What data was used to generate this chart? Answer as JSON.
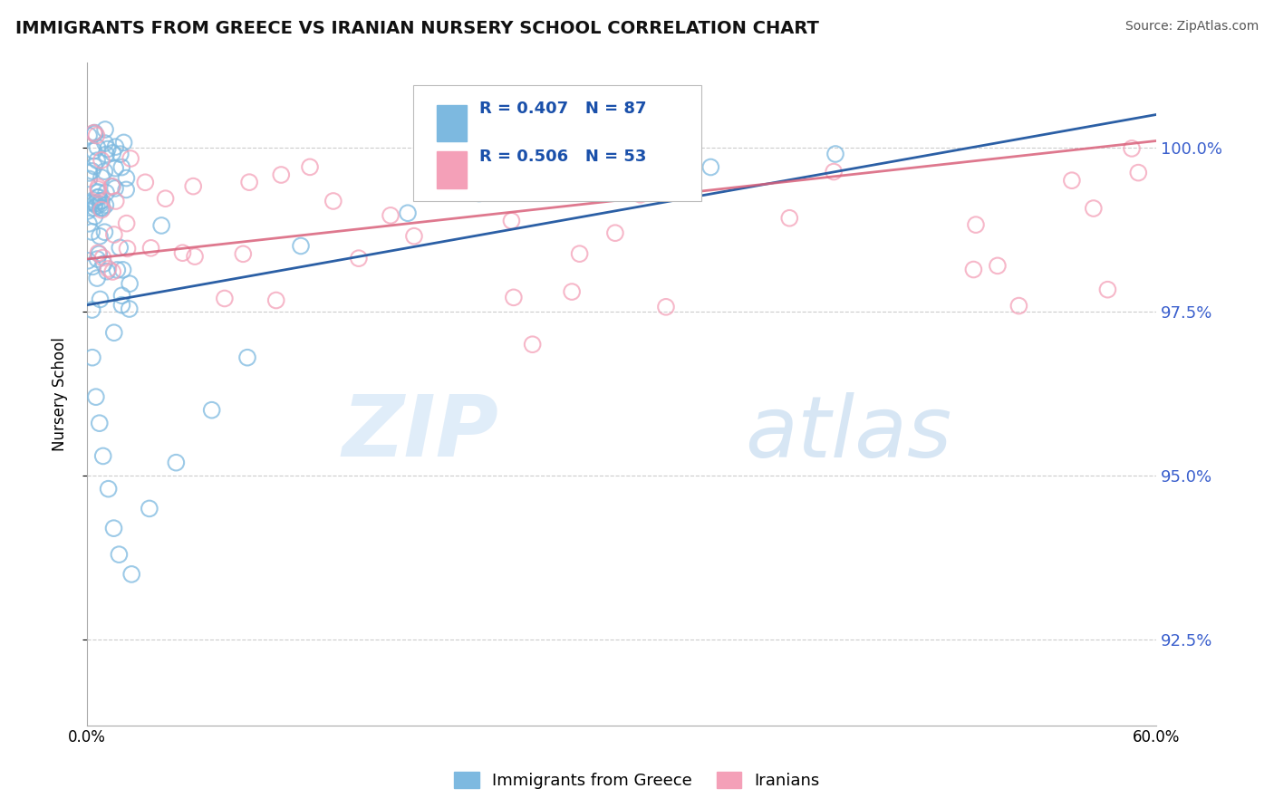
{
  "title": "IMMIGRANTS FROM GREECE VS IRANIAN NURSERY SCHOOL CORRELATION CHART",
  "source": "Source: ZipAtlas.com",
  "ylabel": "Nursery School",
  "xlim": [
    0.0,
    60.0
  ],
  "ylim": [
    91.2,
    101.3
  ],
  "yticks": [
    92.5,
    95.0,
    97.5,
    100.0
  ],
  "ytick_labels": [
    "92.5%",
    "95.0%",
    "97.5%",
    "100.0%"
  ],
  "blue_color": "#7db9e0",
  "pink_color": "#f4a0b8",
  "blue_line_color": "#2b5fa5",
  "pink_line_color": "#d9607a",
  "R_blue": 0.407,
  "N_blue": 87,
  "R_pink": 0.506,
  "N_pink": 53,
  "legend_label_blue": "Immigrants from Greece",
  "legend_label_pink": "Iranians",
  "blue_trend_x0": 0.0,
  "blue_trend_y0": 97.6,
  "blue_trend_x1": 60.0,
  "blue_trend_y1": 100.5,
  "pink_trend_x0": 0.0,
  "pink_trend_y0": 98.3,
  "pink_trend_x1": 60.0,
  "pink_trend_y1": 100.1
}
